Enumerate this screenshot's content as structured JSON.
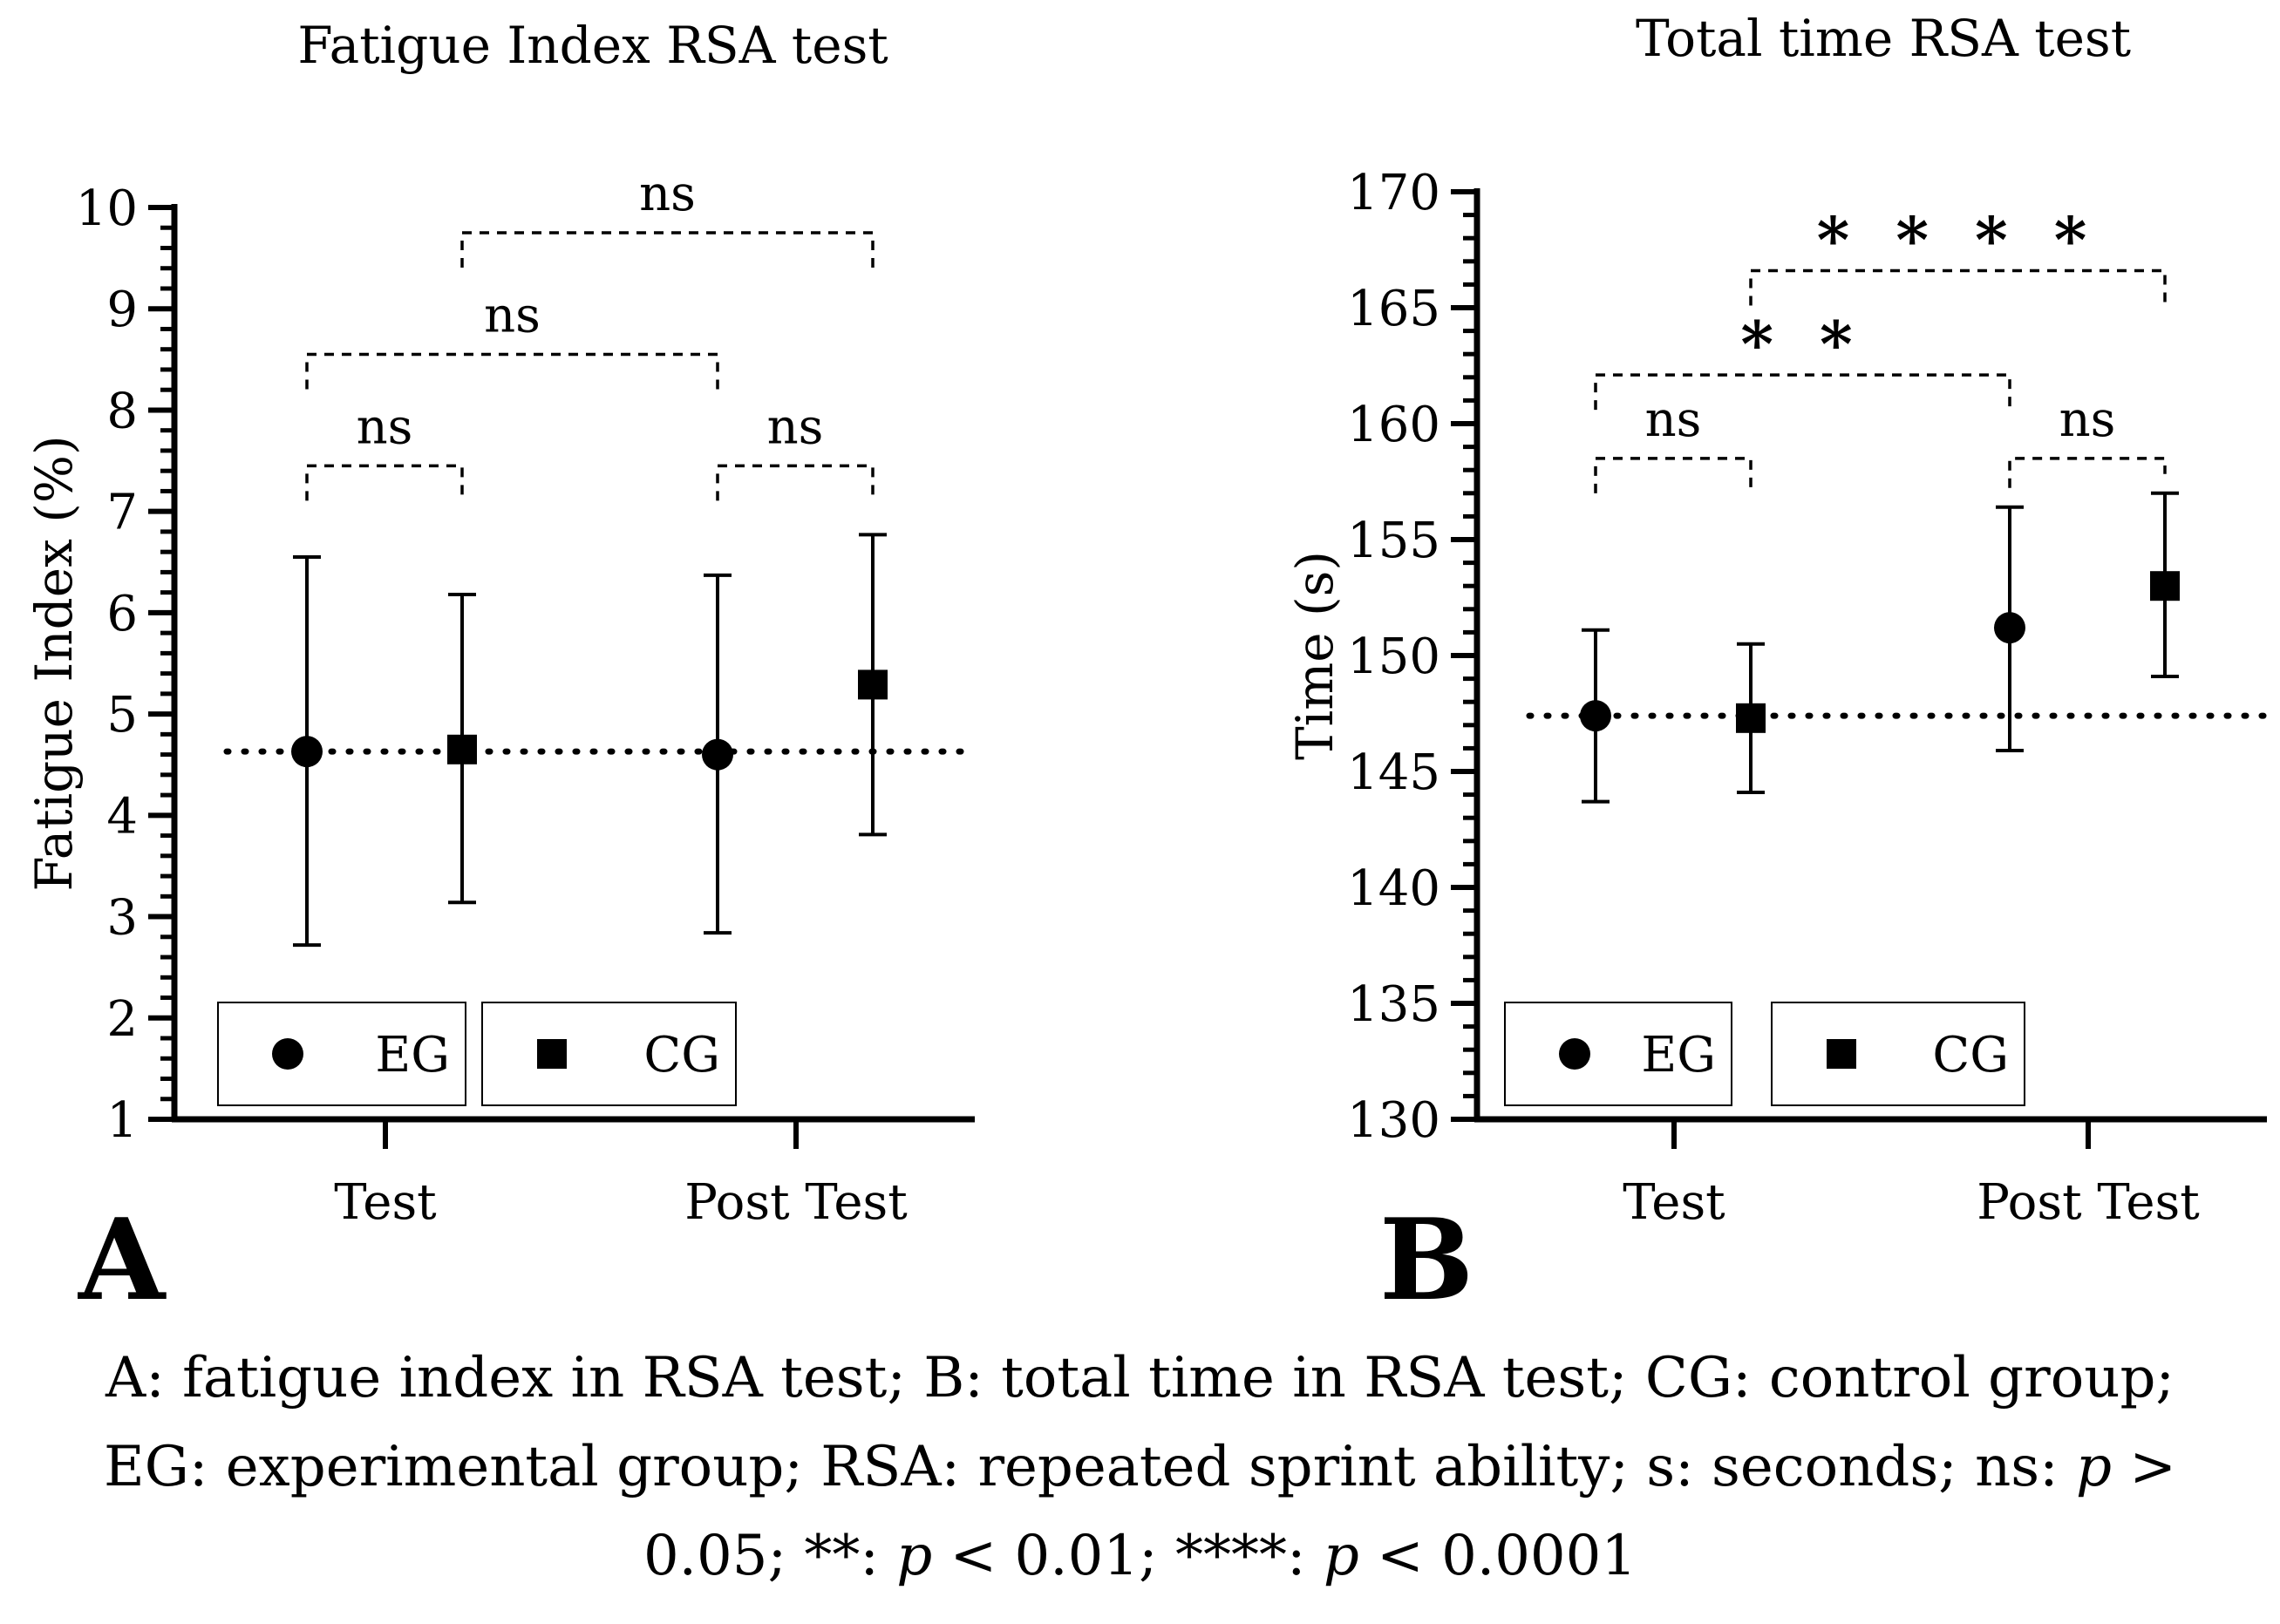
{
  "chart_data": [
    {
      "type": "scatter",
      "panel_label": "A",
      "title": "Fatigue Index RSA test",
      "xlabel": "",
      "ylabel": "Fatigue Index (%)",
      "ylim": [
        1,
        10
      ],
      "yticks": [
        1,
        2,
        3,
        4,
        5,
        6,
        7,
        8,
        9,
        10
      ],
      "categories": [
        "Test",
        "Post Test"
      ],
      "series": [
        {
          "name": "EG",
          "marker": "circle",
          "mean": [
            4.63,
            4.6
          ],
          "upper": [
            6.55,
            6.37
          ],
          "lower": [
            2.72,
            2.84
          ]
        },
        {
          "name": "CG",
          "marker": "square",
          "mean": [
            4.65,
            5.29
          ],
          "upper": [
            6.18,
            6.77
          ],
          "lower": [
            3.14,
            3.81
          ]
        }
      ],
      "reference_line": 4.63,
      "comparisons": [
        {
          "from": "EG Test",
          "to": "CG Test",
          "label": "ns",
          "y": 7.45
        },
        {
          "from": "EG Post Test",
          "to": "CG Post Test",
          "label": "ns",
          "y": 7.45
        },
        {
          "from": "EG Test",
          "to": "EG Post Test",
          "label": "ns",
          "y": 8.55
        },
        {
          "from": "CG Test",
          "to": "CG Post Test",
          "label": "ns",
          "y": 9.75
        }
      ],
      "legend": [
        "EG",
        "CG"
      ],
      "legend_position": "bottom-left"
    },
    {
      "type": "scatter",
      "panel_label": "B",
      "title": "Total time RSA test",
      "xlabel": "",
      "ylabel": "Time (s)",
      "ylim": [
        130,
        170
      ],
      "yticks": [
        130,
        135,
        140,
        145,
        150,
        155,
        160,
        165,
        170
      ],
      "categories": [
        "Test",
        "Post Test"
      ],
      "series": [
        {
          "name": "EG",
          "marker": "circle",
          "mean": [
            147.4,
            151.2
          ],
          "upper": [
            151.1,
            156.4
          ],
          "lower": [
            143.7,
            145.9
          ]
        },
        {
          "name": "CG",
          "marker": "square",
          "mean": [
            147.3,
            153.0
          ],
          "upper": [
            150.5,
            157.0
          ],
          "lower": [
            144.1,
            149.1
          ]
        }
      ],
      "reference_line": 147.4,
      "comparisons": [
        {
          "from": "EG Test",
          "to": "CG Test",
          "label": "ns",
          "y": 158.5
        },
        {
          "from": "EG Post Test",
          "to": "CG Post Test",
          "label": "ns",
          "y": 158.5
        },
        {
          "from": "EG Test",
          "to": "EG Post Test",
          "label": "* *",
          "y": 162.1
        },
        {
          "from": "CG Test",
          "to": "CG Post Test",
          "label": "* * * *",
          "y": 166.6
        }
      ],
      "legend": [
        "EG",
        "CG"
      ],
      "legend_position": "bottom-left"
    }
  ],
  "caption": {
    "part1": "A: fatigue index in RSA test; B: total time in RSA test; CG: control group;",
    "part2": "EG: experimental group; RSA: repeated sprint ability; s: seconds; ns:",
    "p_symbol": "p",
    "gt": " >",
    "part3": "0.05; **:",
    "lt1": " < 0.01; ****:",
    "lt2": " < 0.0001"
  }
}
